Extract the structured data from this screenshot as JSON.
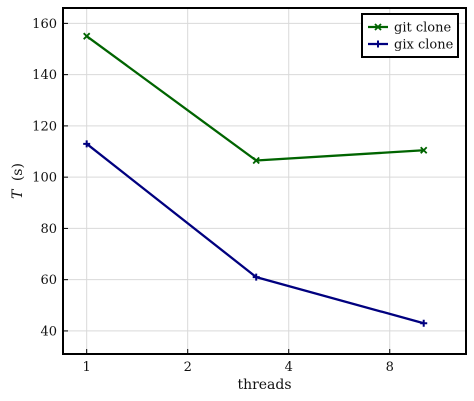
{
  "chart_data": {
    "type": "line",
    "xlabel": "threads",
    "ylabel_var": "T",
    "ylabel_unit": "(s)",
    "x_scale": "log2",
    "xlim": [
      0.85,
      13.5
    ],
    "ylim": [
      31,
      166
    ],
    "x_ticks": [
      1,
      2,
      4,
      8
    ],
    "x_tick_labels": [
      "1",
      "2",
      "4",
      "8"
    ],
    "y_ticks": [
      40,
      60,
      80,
      100,
      120,
      140,
      160
    ],
    "y_tick_labels": [
      "40",
      "60",
      "80",
      "100",
      "120",
      "140",
      "160"
    ],
    "grid": true,
    "legend_position": "top-right",
    "series": [
      {
        "name": "git clone",
        "color": "#006400",
        "marker": "x",
        "x": [
          1,
          3.2,
          10.1
        ],
        "y": [
          155,
          106.5,
          110.5
        ]
      },
      {
        "name": "gix clone",
        "color": "#00007f",
        "marker": "plus",
        "x": [
          1,
          3.2,
          10.1
        ],
        "y": [
          113,
          61,
          43
        ]
      }
    ]
  }
}
